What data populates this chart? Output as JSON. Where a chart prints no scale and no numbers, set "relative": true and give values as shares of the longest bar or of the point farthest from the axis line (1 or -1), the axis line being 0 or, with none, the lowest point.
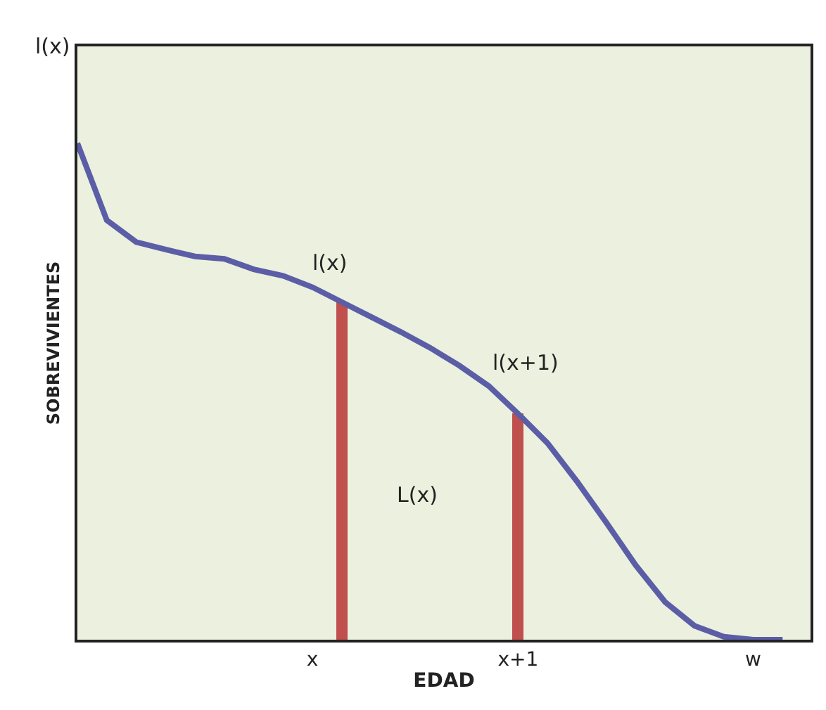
{
  "chart_data": {
    "type": "line",
    "relative": true,
    "xlabel": "EDAD",
    "ylabel": "SOBREVIVIENTES",
    "categories": [
      null,
      null,
      null,
      null,
      null,
      null,
      null,
      null,
      "x",
      null,
      null,
      null,
      null,
      null,
      null,
      "x+1",
      null,
      null,
      null,
      null,
      null,
      null,
      null,
      "w",
      null
    ],
    "series": [
      {
        "color": "#5b5ea6",
        "values": [
          1.0,
          0.845,
          0.801,
          0.786,
          0.772,
          0.767,
          0.746,
          0.733,
          0.71,
          0.68,
          0.65,
          0.62,
          0.588,
          0.552,
          0.511,
          0.455,
          0.396,
          0.319,
          0.236,
          0.15,
          0.076,
          0.028,
          0.006,
          0,
          0
        ]
      },
      {
        "type": "bar",
        "color": "#c0504d",
        "values": [
          null,
          null,
          null,
          null,
          null,
          null,
          null,
          null,
          null,
          0.68,
          null,
          null,
          null,
          null,
          null,
          0.455,
          null,
          null,
          null,
          null,
          null,
          null,
          null,
          null,
          null
        ]
      }
    ],
    "annotations": [
      "l(x)",
      "l(x)",
      "l(x+1)",
      "L(x)"
    ],
    "grid": false,
    "marker": "none",
    "line_style": "solid"
  }
}
